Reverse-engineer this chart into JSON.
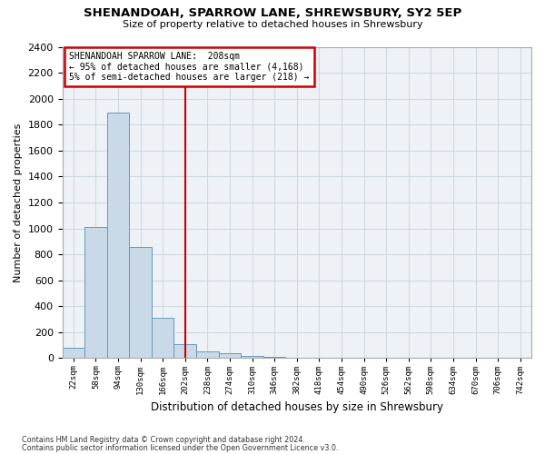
{
  "title1": "SHENANDOAH, SPARROW LANE, SHREWSBURY, SY2 5EP",
  "title2": "Size of property relative to detached houses in Shrewsbury",
  "xlabel": "Distribution of detached houses by size in Shrewsbury",
  "ylabel": "Number of detached properties",
  "footnote1": "Contains HM Land Registry data © Crown copyright and database right 2024.",
  "footnote2": "Contains public sector information licensed under the Open Government Licence v3.0.",
  "bin_labels": [
    "22sqm",
    "58sqm",
    "94sqm",
    "130sqm",
    "166sqm",
    "202sqm",
    "238sqm",
    "274sqm",
    "310sqm",
    "346sqm",
    "382sqm",
    "418sqm",
    "454sqm",
    "490sqm",
    "526sqm",
    "562sqm",
    "598sqm",
    "634sqm",
    "670sqm",
    "706sqm",
    "742sqm"
  ],
  "bar_values": [
    80,
    1010,
    1890,
    860,
    310,
    110,
    50,
    35,
    20,
    10,
    5,
    0,
    0,
    0,
    0,
    0,
    0,
    0,
    0,
    0,
    0
  ],
  "bar_color": "#c9d9e8",
  "bar_edge_color": "#6699bb",
  "grid_color": "#d0d8e0",
  "background_color": "#eef2f7",
  "vline_x": 5,
  "vline_color": "#cc0000",
  "ylim": [
    0,
    2400
  ],
  "yticks": [
    0,
    200,
    400,
    600,
    800,
    1000,
    1200,
    1400,
    1600,
    1800,
    2000,
    2200,
    2400
  ],
  "annotation_title": "SHENANDOAH SPARROW LANE:  208sqm",
  "annotation_line1": "← 95% of detached houses are smaller (4,168)",
  "annotation_line2": "5% of semi-detached houses are larger (218) →",
  "annotation_box_color": "#ffffff",
  "annotation_box_edge": "#cc0000"
}
